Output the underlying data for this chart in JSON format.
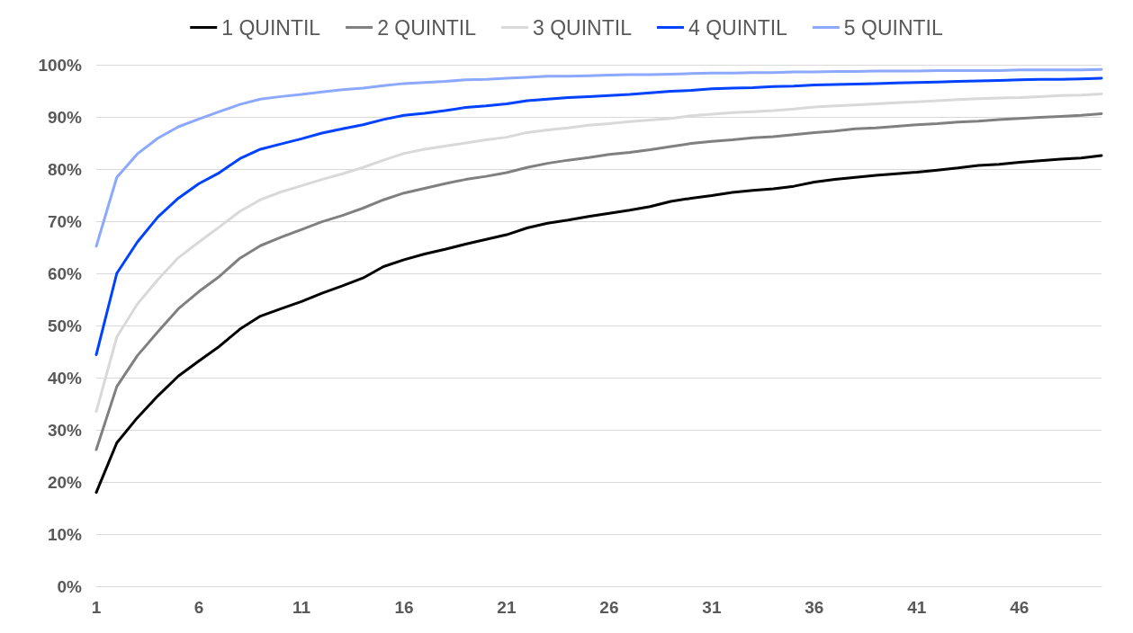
{
  "chart_data": {
    "type": "line",
    "x": [
      1,
      2,
      3,
      4,
      5,
      6,
      7,
      8,
      9,
      10,
      11,
      12,
      13,
      14,
      15,
      16,
      17,
      18,
      19,
      20,
      21,
      22,
      23,
      24,
      25,
      26,
      27,
      28,
      29,
      30,
      31,
      32,
      33,
      34,
      35,
      36,
      37,
      38,
      39,
      40,
      41,
      42,
      43,
      44,
      45,
      46,
      47,
      48,
      49,
      50
    ],
    "xlim": [
      1,
      50
    ],
    "xticks": [
      1,
      6,
      11,
      16,
      21,
      26,
      31,
      36,
      41,
      46
    ],
    "series": [
      {
        "name": "1 QUINTIL",
        "color": "#000000",
        "values": [
          18,
          27.5,
          32.3,
          36.5,
          40.3,
          43.2,
          46,
          49.3,
          51.8,
          53.2,
          54.6,
          56.2,
          57.6,
          59.1,
          61.3,
          62.6,
          63.7,
          64.6,
          65.6,
          66.5,
          67.4,
          68.7,
          69.6,
          70.2,
          70.9,
          71.5,
          72.1,
          72.8,
          73.8,
          74.4,
          74.9,
          75.5,
          75.9,
          76.2,
          76.7,
          77.5,
          78,
          78.4,
          78.8,
          79.1,
          79.4,
          79.8,
          80.2,
          80.7,
          80.9,
          81.3,
          81.6,
          81.9,
          82.1,
          82.6
        ]
      },
      {
        "name": "2 QUINTIL",
        "color": "#808080",
        "values": [
          26.2,
          38.3,
          44.2,
          48.8,
          53.2,
          56.5,
          59.4,
          62.9,
          65.3,
          66.9,
          68.4,
          69.9,
          71.1,
          72.5,
          74.1,
          75.4,
          76.3,
          77.2,
          78,
          78.6,
          79.3,
          80.3,
          81.1,
          81.7,
          82.2,
          82.8,
          83.2,
          83.7,
          84.3,
          84.9,
          85.3,
          85.6,
          86,
          86.2,
          86.6,
          87,
          87.3,
          87.7,
          87.9,
          88.2,
          88.5,
          88.7,
          89,
          89.2,
          89.5,
          89.7,
          89.9,
          90.1,
          90.3,
          90.6
        ]
      },
      {
        "name": "3 QUINTIL",
        "color": "#d9d9d9",
        "values": [
          33.5,
          47.8,
          54.1,
          58.8,
          63,
          66,
          68.9,
          71.9,
          74.1,
          75.6,
          76.8,
          78,
          79.1,
          80.3,
          81.7,
          83,
          83.8,
          84.4,
          85,
          85.6,
          86.1,
          87,
          87.5,
          87.9,
          88.4,
          88.7,
          89.1,
          89.4,
          89.7,
          90.2,
          90.5,
          90.8,
          91,
          91.2,
          91.5,
          91.9,
          92.1,
          92.3,
          92.5,
          92.7,
          92.9,
          93.1,
          93.3,
          93.5,
          93.6,
          93.7,
          93.9,
          94.1,
          94.2,
          94.4
        ]
      },
      {
        "name": "4 QUINTIL",
        "color": "#0042ff",
        "values": [
          44.4,
          60,
          66,
          70.8,
          74.4,
          77.2,
          79.3,
          82,
          83.8,
          84.8,
          85.8,
          86.9,
          87.7,
          88.5,
          89.5,
          90.3,
          90.7,
          91.2,
          91.8,
          92.1,
          92.5,
          93.1,
          93.4,
          93.7,
          93.9,
          94.1,
          94.3,
          94.6,
          94.9,
          95.1,
          95.4,
          95.5,
          95.6,
          95.8,
          95.9,
          96.1,
          96.2,
          96.3,
          96.4,
          96.5,
          96.6,
          96.7,
          96.8,
          96.9,
          97,
          97.1,
          97.2,
          97.2,
          97.3,
          97.4
        ]
      },
      {
        "name": "5 QUINTIL",
        "color": "#8ca8ff",
        "values": [
          65.2,
          78.4,
          82.9,
          85.9,
          88.1,
          89.6,
          91,
          92.4,
          93.4,
          93.9,
          94.3,
          94.8,
          95.2,
          95.5,
          96,
          96.4,
          96.6,
          96.8,
          97.1,
          97.2,
          97.4,
          97.6,
          97.8,
          97.8,
          97.9,
          98,
          98.1,
          98.1,
          98.2,
          98.3,
          98.4,
          98.4,
          98.5,
          98.5,
          98.6,
          98.6,
          98.7,
          98.7,
          98.8,
          98.8,
          98.8,
          98.9,
          98.9,
          98.9,
          98.9,
          99,
          99,
          99,
          99,
          99.1
        ]
      }
    ],
    "ylim": [
      0,
      100
    ],
    "yticks": [
      {
        "value": 0,
        "label": "0%"
      },
      {
        "value": 10,
        "label": "10%"
      },
      {
        "value": 20,
        "label": "20%"
      },
      {
        "value": 30,
        "label": "30%"
      },
      {
        "value": 40,
        "label": "40%"
      },
      {
        "value": 50,
        "label": "50%"
      },
      {
        "value": 60,
        "label": "60%"
      },
      {
        "value": 70,
        "label": "70%"
      },
      {
        "value": 80,
        "label": "80%"
      },
      {
        "value": 90,
        "label": "90%"
      },
      {
        "value": 100,
        "label": "100%"
      }
    ],
    "grid": "y",
    "legend": "top",
    "marker": "none",
    "line_style": "solid"
  }
}
